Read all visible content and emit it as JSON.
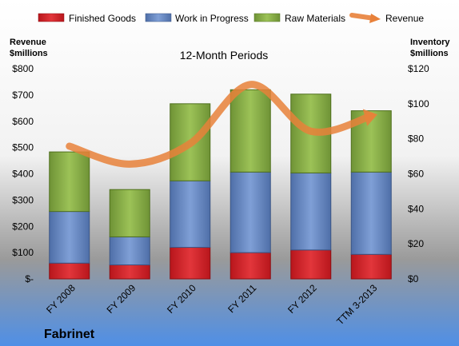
{
  "company": "Fabrinet",
  "colors": {
    "finished_goods": "#d9252b",
    "work_in_progress": "#6f8fc4",
    "raw_materials": "#8db34a",
    "revenue": "#e8813a"
  },
  "chart_data": {
    "type": "bar",
    "stacked": true,
    "title": "12-Month Periods",
    "categories": [
      "FY 2008",
      "FY 2009",
      "FY 2010",
      "FY 2011",
      "FY 2012",
      "TTM 3-2013"
    ],
    "y_left": {
      "label_line1": "Revenue",
      "label_line2": "$millions",
      "range": [
        0,
        800
      ],
      "ticks": [
        "$-",
        "$100",
        "$200",
        "$300",
        "$400",
        "$500",
        "$600",
        "$700",
        "$800"
      ]
    },
    "y_right": {
      "label_line1": "Inventory",
      "label_line2": "$millions",
      "range": [
        0,
        120
      ],
      "ticks": [
        "$0",
        "$20",
        "$40",
        "$60",
        "$80",
        "$100",
        "$120"
      ]
    },
    "series": [
      {
        "name": "Finished Goods",
        "axis": "right",
        "color_key": "finished_goods",
        "values": [
          9,
          8,
          18,
          15,
          16.5,
          14
        ]
      },
      {
        "name": "Work in Progress",
        "axis": "right",
        "color_key": "work_in_progress",
        "values": [
          29.5,
          16,
          38,
          46,
          44,
          47
        ]
      },
      {
        "name": "Raw Materials",
        "axis": "right",
        "color_key": "raw_materials",
        "values": [
          34,
          27,
          44,
          47,
          45,
          35
        ]
      },
      {
        "name": "Revenue",
        "axis": "left",
        "type": "line",
        "color_key": "revenue",
        "values": [
          505,
          437,
          515,
          740,
          562,
          620
        ]
      }
    ],
    "grid": false,
    "legend_position": "top"
  }
}
